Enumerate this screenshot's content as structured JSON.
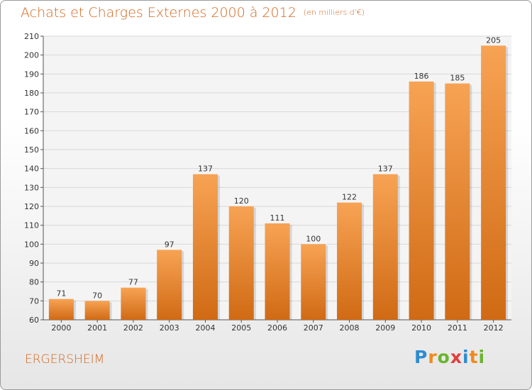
{
  "title": "Achats et Charges Externes 2000 à 2012",
  "subtitle": "(en milliers d'€)",
  "commune": "ERGERSHEIM",
  "logo": {
    "letters": [
      "P",
      "r",
      "o",
      "x",
      "i",
      "t",
      "i"
    ],
    "colors": [
      "#2e8bd0",
      "#f08a1c",
      "#6ab42d",
      "#e33c3c",
      "#2e8bd0",
      "#f08a1c",
      "#6ab42d"
    ]
  },
  "colors": {
    "bar_top": "#f7a354",
    "bar_bottom": "#d06a14",
    "accent": "#d2661e",
    "plot_bg": "#f4f4f4",
    "grid": "#d8d8d8"
  },
  "chart_data": {
    "type": "bar",
    "title": "Achats et Charges Externes 2000 à 2012",
    "categories": [
      "2000",
      "2001",
      "2002",
      "2003",
      "2004",
      "2005",
      "2006",
      "2007",
      "2008",
      "2009",
      "2010",
      "2011",
      "2012"
    ],
    "values": [
      71,
      70,
      77,
      97,
      137,
      120,
      111,
      100,
      122,
      137,
      186,
      185,
      205
    ],
    "ylim": [
      60,
      210
    ],
    "yticks": [
      60,
      70,
      80,
      90,
      100,
      110,
      120,
      130,
      140,
      150,
      160,
      170,
      180,
      190,
      200,
      210
    ],
    "grid": true,
    "data_labels": true
  }
}
